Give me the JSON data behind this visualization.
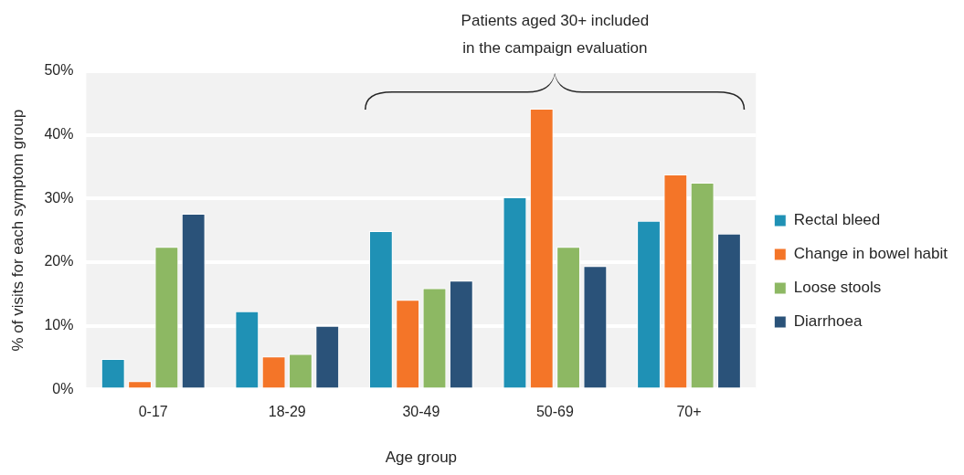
{
  "chart_data": {
    "type": "bar",
    "xlabel": "Age group",
    "ylabel": "% of visits for each symptom group",
    "categories": [
      "0-17",
      "18-29",
      "30-49",
      "50-69",
      "70+"
    ],
    "series": [
      {
        "name": "Rectal bleed",
        "color": "#1f91b5",
        "values": [
          4.8,
          12.3,
          24.9,
          30.2,
          26.5
        ]
      },
      {
        "name": "Change in bowel habit",
        "color": "#f47528",
        "values": [
          1.3,
          5.2,
          14.1,
          44.1,
          33.8
        ]
      },
      {
        "name": "Loose stools",
        "color": "#8db863",
        "values": [
          22.4,
          5.6,
          15.9,
          22.4,
          32.5
        ]
      },
      {
        "name": "Diarrhoea",
        "color": "#2a5279",
        "values": [
          27.6,
          10.0,
          17.1,
          19.4,
          24.5
        ]
      }
    ],
    "ylim": [
      0,
      50
    ],
    "yticks": [
      {
        "value": 0,
        "label": "0%"
      },
      {
        "value": 10,
        "label": "10%"
      },
      {
        "value": 20,
        "label": "20%"
      },
      {
        "value": 30,
        "label": "30%"
      },
      {
        "value": 40,
        "label": "40%"
      },
      {
        "value": 50,
        "label": "50%"
      }
    ],
    "grid": "y",
    "legend": "right",
    "annotations": [
      "Patients aged 30+ included\nin the campaign evaluation"
    ]
  }
}
